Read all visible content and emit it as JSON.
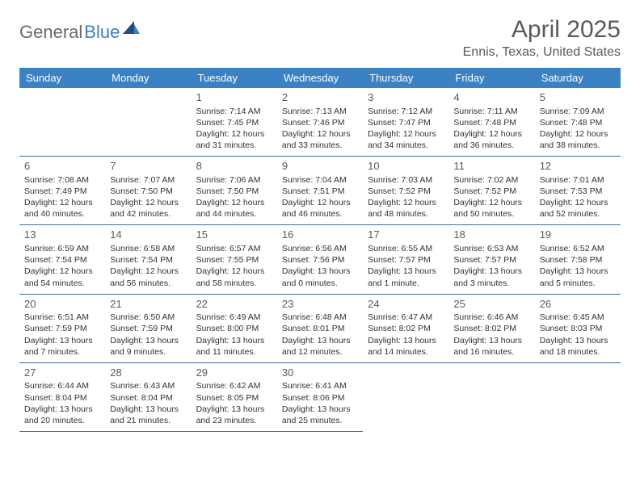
{
  "logo": {
    "part1": "General",
    "part2": "Blue"
  },
  "title": "April 2025",
  "location": "Ennis, Texas, United States",
  "weekdays": [
    "Sunday",
    "Monday",
    "Tuesday",
    "Wednesday",
    "Thursday",
    "Friday",
    "Saturday"
  ],
  "header_bg": "#3b82c4",
  "border_color": "#3b6ea0",
  "weeks": [
    [
      null,
      null,
      {
        "n": "1",
        "sr": "Sunrise: 7:14 AM",
        "ss": "Sunset: 7:45 PM",
        "d1": "Daylight: 12 hours",
        "d2": "and 31 minutes."
      },
      {
        "n": "2",
        "sr": "Sunrise: 7:13 AM",
        "ss": "Sunset: 7:46 PM",
        "d1": "Daylight: 12 hours",
        "d2": "and 33 minutes."
      },
      {
        "n": "3",
        "sr": "Sunrise: 7:12 AM",
        "ss": "Sunset: 7:47 PM",
        "d1": "Daylight: 12 hours",
        "d2": "and 34 minutes."
      },
      {
        "n": "4",
        "sr": "Sunrise: 7:11 AM",
        "ss": "Sunset: 7:48 PM",
        "d1": "Daylight: 12 hours",
        "d2": "and 36 minutes."
      },
      {
        "n": "5",
        "sr": "Sunrise: 7:09 AM",
        "ss": "Sunset: 7:48 PM",
        "d1": "Daylight: 12 hours",
        "d2": "and 38 minutes."
      }
    ],
    [
      {
        "n": "6",
        "sr": "Sunrise: 7:08 AM",
        "ss": "Sunset: 7:49 PM",
        "d1": "Daylight: 12 hours",
        "d2": "and 40 minutes."
      },
      {
        "n": "7",
        "sr": "Sunrise: 7:07 AM",
        "ss": "Sunset: 7:50 PM",
        "d1": "Daylight: 12 hours",
        "d2": "and 42 minutes."
      },
      {
        "n": "8",
        "sr": "Sunrise: 7:06 AM",
        "ss": "Sunset: 7:50 PM",
        "d1": "Daylight: 12 hours",
        "d2": "and 44 minutes."
      },
      {
        "n": "9",
        "sr": "Sunrise: 7:04 AM",
        "ss": "Sunset: 7:51 PM",
        "d1": "Daylight: 12 hours",
        "d2": "and 46 minutes."
      },
      {
        "n": "10",
        "sr": "Sunrise: 7:03 AM",
        "ss": "Sunset: 7:52 PM",
        "d1": "Daylight: 12 hours",
        "d2": "and 48 minutes."
      },
      {
        "n": "11",
        "sr": "Sunrise: 7:02 AM",
        "ss": "Sunset: 7:52 PM",
        "d1": "Daylight: 12 hours",
        "d2": "and 50 minutes."
      },
      {
        "n": "12",
        "sr": "Sunrise: 7:01 AM",
        "ss": "Sunset: 7:53 PM",
        "d1": "Daylight: 12 hours",
        "d2": "and 52 minutes."
      }
    ],
    [
      {
        "n": "13",
        "sr": "Sunrise: 6:59 AM",
        "ss": "Sunset: 7:54 PM",
        "d1": "Daylight: 12 hours",
        "d2": "and 54 minutes."
      },
      {
        "n": "14",
        "sr": "Sunrise: 6:58 AM",
        "ss": "Sunset: 7:54 PM",
        "d1": "Daylight: 12 hours",
        "d2": "and 56 minutes."
      },
      {
        "n": "15",
        "sr": "Sunrise: 6:57 AM",
        "ss": "Sunset: 7:55 PM",
        "d1": "Daylight: 12 hours",
        "d2": "and 58 minutes."
      },
      {
        "n": "16",
        "sr": "Sunrise: 6:56 AM",
        "ss": "Sunset: 7:56 PM",
        "d1": "Daylight: 13 hours",
        "d2": "and 0 minutes."
      },
      {
        "n": "17",
        "sr": "Sunrise: 6:55 AM",
        "ss": "Sunset: 7:57 PM",
        "d1": "Daylight: 13 hours",
        "d2": "and 1 minute."
      },
      {
        "n": "18",
        "sr": "Sunrise: 6:53 AM",
        "ss": "Sunset: 7:57 PM",
        "d1": "Daylight: 13 hours",
        "d2": "and 3 minutes."
      },
      {
        "n": "19",
        "sr": "Sunrise: 6:52 AM",
        "ss": "Sunset: 7:58 PM",
        "d1": "Daylight: 13 hours",
        "d2": "and 5 minutes."
      }
    ],
    [
      {
        "n": "20",
        "sr": "Sunrise: 6:51 AM",
        "ss": "Sunset: 7:59 PM",
        "d1": "Daylight: 13 hours",
        "d2": "and 7 minutes."
      },
      {
        "n": "21",
        "sr": "Sunrise: 6:50 AM",
        "ss": "Sunset: 7:59 PM",
        "d1": "Daylight: 13 hours",
        "d2": "and 9 minutes."
      },
      {
        "n": "22",
        "sr": "Sunrise: 6:49 AM",
        "ss": "Sunset: 8:00 PM",
        "d1": "Daylight: 13 hours",
        "d2": "and 11 minutes."
      },
      {
        "n": "23",
        "sr": "Sunrise: 6:48 AM",
        "ss": "Sunset: 8:01 PM",
        "d1": "Daylight: 13 hours",
        "d2": "and 12 minutes."
      },
      {
        "n": "24",
        "sr": "Sunrise: 6:47 AM",
        "ss": "Sunset: 8:02 PM",
        "d1": "Daylight: 13 hours",
        "d2": "and 14 minutes."
      },
      {
        "n": "25",
        "sr": "Sunrise: 6:46 AM",
        "ss": "Sunset: 8:02 PM",
        "d1": "Daylight: 13 hours",
        "d2": "and 16 minutes."
      },
      {
        "n": "26",
        "sr": "Sunrise: 6:45 AM",
        "ss": "Sunset: 8:03 PM",
        "d1": "Daylight: 13 hours",
        "d2": "and 18 minutes."
      }
    ],
    [
      {
        "n": "27",
        "sr": "Sunrise: 6:44 AM",
        "ss": "Sunset: 8:04 PM",
        "d1": "Daylight: 13 hours",
        "d2": "and 20 minutes."
      },
      {
        "n": "28",
        "sr": "Sunrise: 6:43 AM",
        "ss": "Sunset: 8:04 PM",
        "d1": "Daylight: 13 hours",
        "d2": "and 21 minutes."
      },
      {
        "n": "29",
        "sr": "Sunrise: 6:42 AM",
        "ss": "Sunset: 8:05 PM",
        "d1": "Daylight: 13 hours",
        "d2": "and 23 minutes."
      },
      {
        "n": "30",
        "sr": "Sunrise: 6:41 AM",
        "ss": "Sunset: 8:06 PM",
        "d1": "Daylight: 13 hours",
        "d2": "and 25 minutes."
      },
      null,
      null,
      null
    ]
  ]
}
